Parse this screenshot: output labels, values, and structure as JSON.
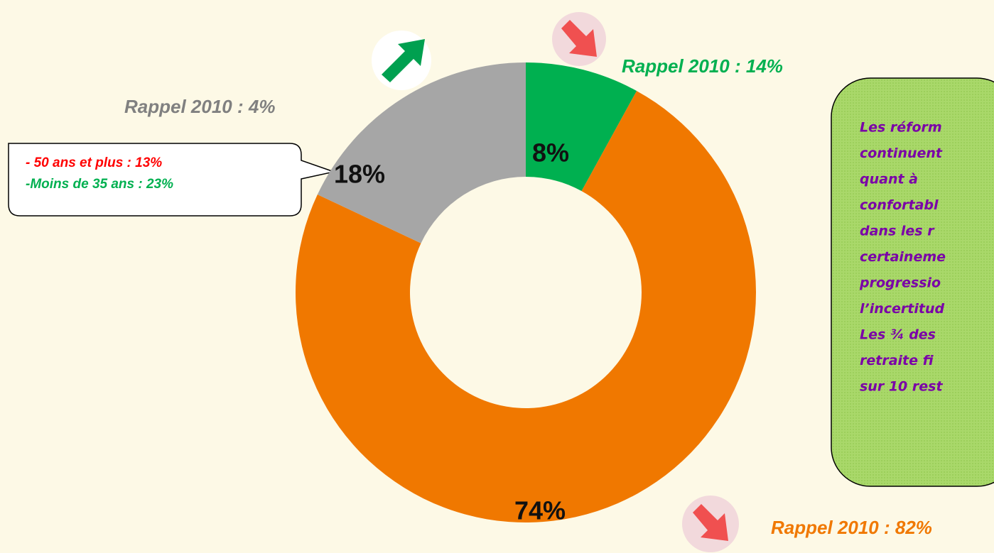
{
  "chart_data": {
    "type": "donut",
    "categories": [
      null,
      null,
      null
    ],
    "values": [
      8,
      74,
      18
    ],
    "value_labels": [
      "8%",
      "74%",
      "18%"
    ],
    "colors": [
      "#00b050",
      "#f07800",
      "#a6a6a6"
    ],
    "annotations": [
      {
        "text": "Rappel 2010 : 14%",
        "color": "#00b050"
      },
      {
        "text": "Rappel 2010 : 4%",
        "color": "#808080"
      },
      {
        "text": "Rappel 2010 : 82%",
        "color": "#f07800"
      }
    ],
    "callout": [
      {
        "text": "- 50 ans et plus : 13%",
        "color": "#ff0000"
      },
      {
        "text": "-Moins de 35 ans : 23%",
        "color": "#00b050"
      }
    ],
    "note_lines": [
      "Les réform",
      "continuent",
      "quant    à",
      "confortabl",
      "dans les r",
      "certaineme",
      "progressio",
      "l’incertitud",
      "Les ¾ des",
      "retraite fi",
      "sur 10 rest"
    ]
  }
}
